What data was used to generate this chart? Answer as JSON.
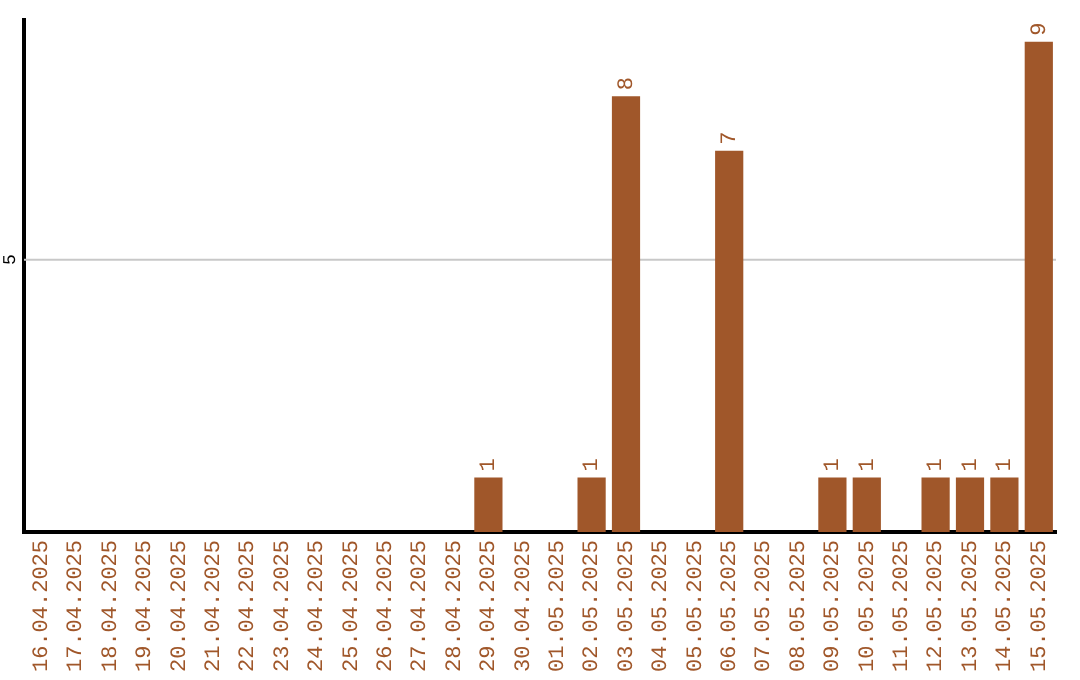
{
  "chart_data": {
    "type": "bar",
    "categories": [
      "16.04.2025",
      "17.04.2025",
      "18.04.2025",
      "19.04.2025",
      "20.04.2025",
      "21.04.2025",
      "22.04.2025",
      "23.04.2025",
      "24.04.2025",
      "25.04.2025",
      "26.04.2025",
      "27.04.2025",
      "28.04.2025",
      "29.04.2025",
      "30.04.2025",
      "01.05.2025",
      "02.05.2025",
      "03.05.2025",
      "04.05.2025",
      "05.05.2025",
      "06.05.2025",
      "07.05.2025",
      "08.05.2025",
      "09.05.2025",
      "10.05.2025",
      "11.05.2025",
      "12.05.2025",
      "13.05.2025",
      "14.05.2025",
      "15.05.2025"
    ],
    "values": [
      null,
      null,
      null,
      null,
      null,
      null,
      null,
      null,
      null,
      null,
      null,
      null,
      null,
      1,
      null,
      null,
      1,
      8,
      null,
      null,
      7,
      null,
      null,
      1,
      1,
      null,
      1,
      1,
      1,
      9
    ],
    "value_labels": [
      null,
      null,
      null,
      null,
      null,
      null,
      null,
      null,
      null,
      null,
      null,
      null,
      null,
      "1",
      null,
      null,
      "1",
      "8",
      null,
      null,
      "7",
      null,
      null,
      "1",
      "1",
      null,
      "1",
      "1",
      "1",
      "9"
    ],
    "ylim": [
      0,
      9.4
    ],
    "color": "#a0572a",
    "ref_lines": [
      {
        "axis": "y",
        "value": 5,
        "label": "5",
        "color": "#c8c8c8"
      }
    ],
    "grid": false,
    "legend": false
  }
}
